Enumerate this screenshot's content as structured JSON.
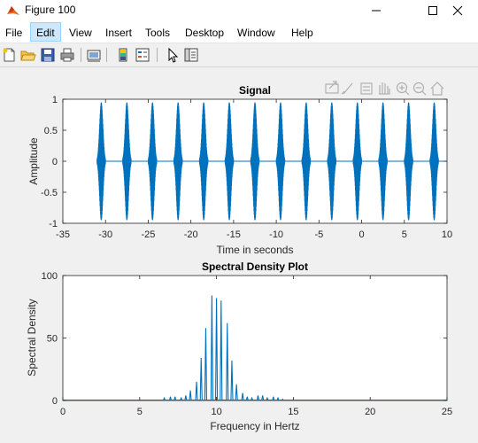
{
  "window": {
    "title": "Figure 100"
  },
  "menu": [
    "File",
    "Edit",
    "View",
    "Insert",
    "Tools",
    "Desktop",
    "Window",
    "Help"
  ],
  "active_menu": "Edit",
  "toolbar_icons": [
    "new-figure-icon",
    "open-file-icon",
    "save-icon",
    "print-icon",
    "link-plot-icon",
    "colorbar-icon",
    "legend-icon",
    "edit-plot-pointer-icon",
    "property-inspector-icon"
  ],
  "axes_toolbar_icons": [
    "export-icon",
    "brush-icon",
    "data-tip-icon",
    "pan-hand-icon",
    "zoom-in-icon",
    "zoom-out-icon",
    "home-icon"
  ],
  "chart_data": [
    {
      "type": "line",
      "title": "Signal",
      "xlabel": "Time in seconds",
      "ylabel": "Amplitude",
      "xlim": [
        -35,
        10
      ],
      "ylim": [
        -1,
        1
      ],
      "xticks": [
        "-35",
        "-30",
        "-25",
        "-20",
        "-15",
        "-10",
        "-5",
        "0",
        "5",
        "10"
      ],
      "yticks": [
        "1",
        "0.5",
        "0",
        "-0.5",
        "-1"
      ],
      "pulse_centers": [
        -30.5,
        -27.5,
        -24.5,
        -21.5,
        -18.5,
        -15.5,
        -12.5,
        -9.5,
        -6.5,
        -3.5,
        -0.5,
        2.5,
        5.5,
        8.5
      ],
      "pulse_amplitude": 0.95,
      "pulse_half_width": 0.5,
      "color": "#0072bd"
    },
    {
      "type": "line",
      "title": "Spectral Density Plot",
      "xlabel": "Frequency in Hertz",
      "ylabel": "Spectral Density",
      "xlim": [
        0,
        25
      ],
      "ylim": [
        0,
        100
      ],
      "xticks": [
        "0",
        "5",
        "10",
        "15",
        "20",
        "25"
      ],
      "yticks": [
        "100",
        "50",
        "0"
      ],
      "peaks": [
        {
          "f": 6.6,
          "v": 2
        },
        {
          "f": 7.0,
          "v": 3
        },
        {
          "f": 7.3,
          "v": 3
        },
        {
          "f": 7.7,
          "v": 2
        },
        {
          "f": 8.0,
          "v": 4
        },
        {
          "f": 8.3,
          "v": 8
        },
        {
          "f": 8.7,
          "v": 15
        },
        {
          "f": 9.0,
          "v": 34
        },
        {
          "f": 9.3,
          "v": 58
        },
        {
          "f": 9.7,
          "v": 84
        },
        {
          "f": 10.0,
          "v": 82
        },
        {
          "f": 10.3,
          "v": 80
        },
        {
          "f": 10.7,
          "v": 62
        },
        {
          "f": 11.0,
          "v": 32
        },
        {
          "f": 11.3,
          "v": 13
        },
        {
          "f": 11.7,
          "v": 6
        },
        {
          "f": 12.0,
          "v": 3
        },
        {
          "f": 12.3,
          "v": 2
        },
        {
          "f": 12.7,
          "v": 4
        },
        {
          "f": 13.0,
          "v": 4
        },
        {
          "f": 13.3,
          "v": 2
        },
        {
          "f": 13.7,
          "v": 3
        },
        {
          "f": 14.0,
          "v": 2
        },
        {
          "f": 14.3,
          "v": 1
        }
      ],
      "color": "#0072bd"
    }
  ]
}
